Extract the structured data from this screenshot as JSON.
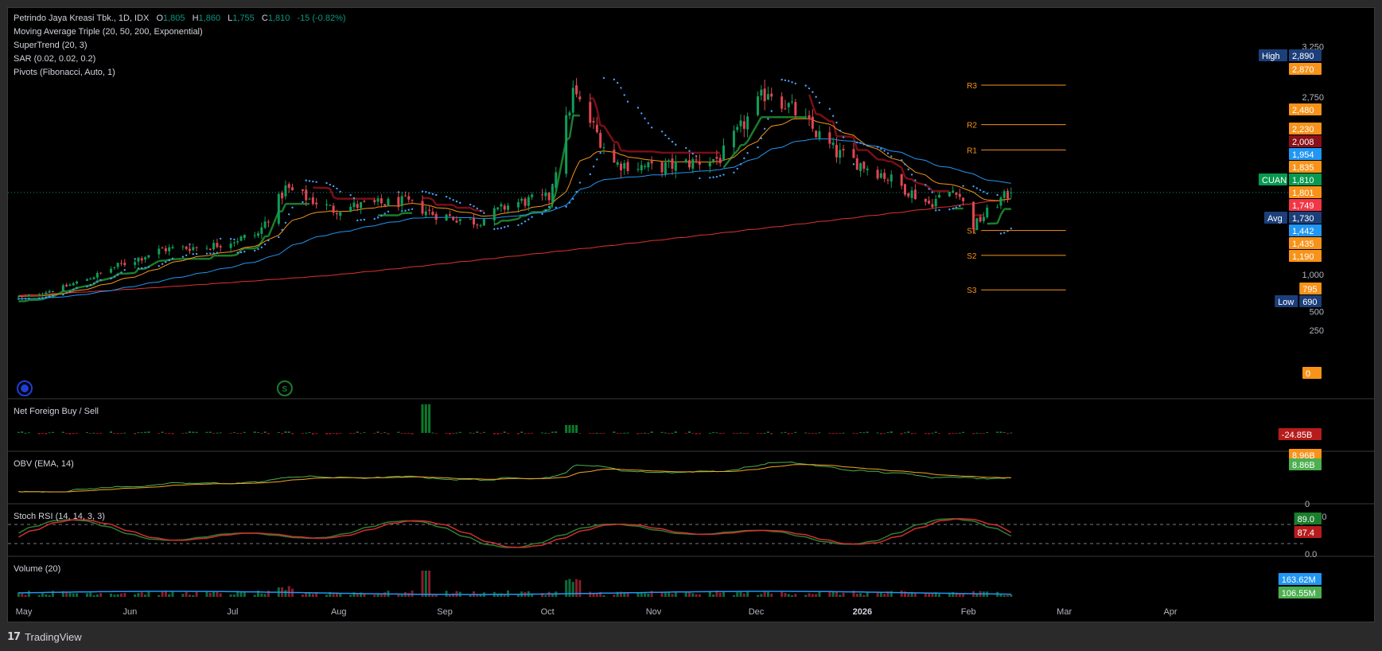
{
  "legend": {
    "symbol": "Petrindo Jaya Kreasi Tbk., 1D, IDX",
    "ohlc": [
      {
        "key": "O",
        "value": "1,805"
      },
      {
        "key": "H",
        "value": "1,860"
      },
      {
        "key": "L",
        "value": "1,755"
      },
      {
        "key": "C",
        "value": "1,810"
      }
    ],
    "change": "-15 (-0.82%)",
    "indicators": [
      "Moving Average Triple (20, 50, 200, Exponential)",
      "SuperTrend (20, 3)",
      "SAR (0.02, 0.02, 0.2)",
      "Pivots (Fibonacci, Auto, 1)"
    ]
  },
  "colors": {
    "up": "#089981",
    "up_fill": "#0b7a3a",
    "down": "#f23645",
    "down_fill": "#e04650",
    "ema20": "#f7931a",
    "ema50": "#2196f3",
    "ema200": "#e03131",
    "supertrend_up": "#1b7d2b",
    "supertrend_down": "#7a0f16",
    "sar": "#4a9fff",
    "pivot": "#f7931a",
    "obv": "#4caf50",
    "obv_ema": "#f5a623",
    "stoch_k": "#2e7d32",
    "stoch_d": "#d32f2f",
    "volume_ma": "#2196f3"
  },
  "price_axis": {
    "ticks": [
      "3,250",
      "2,750",
      "1,000",
      "500",
      "250"
    ]
  },
  "pivots": [
    {
      "label": "R3",
      "value": 2870
    },
    {
      "label": "R2",
      "value": 2480
    },
    {
      "label": "R1",
      "value": 2230
    },
    {
      "label": "S1",
      "value": 1435
    },
    {
      "label": "S2",
      "value": 1190
    },
    {
      "label": "S3",
      "value": 795
    }
  ],
  "price_badges": [
    {
      "prefix": "High",
      "value": "2,890",
      "price": 2890,
      "color": "#1c3f7a"
    },
    {
      "prefix": "",
      "value": "2,870",
      "price": 2870,
      "color": "#f7931a"
    },
    {
      "prefix": "",
      "value": "2,480",
      "price": 2480,
      "color": "#f7931a"
    },
    {
      "prefix": "",
      "value": "2,230",
      "price": 2230,
      "color": "#f7931a"
    },
    {
      "prefix": "",
      "value": "2,008",
      "price": 2008,
      "color": "#8b1019"
    },
    {
      "prefix": "",
      "value": "1,954",
      "price": 1954,
      "color": "#2196f3"
    },
    {
      "prefix": "",
      "value": "1,835",
      "price": 1835,
      "color": "#f7931a"
    },
    {
      "prefix": "CUAN",
      "value": "1,810",
      "price": 1810,
      "color": "#089950"
    },
    {
      "prefix": "",
      "value": "1,801",
      "price": 1801,
      "color": "#f7931a"
    },
    {
      "prefix": "",
      "value": "1,749",
      "price": 1749,
      "color": "#f23645"
    },
    {
      "prefix": "Avg",
      "value": "1,730",
      "price": 1730,
      "color": "#1c3f7a"
    },
    {
      "prefix": "",
      "value": "1,442",
      "price": 1442,
      "color": "#2196f3"
    },
    {
      "prefix": "",
      "value": "1,435",
      "price": 1435,
      "color": "#f7931a"
    },
    {
      "prefix": "",
      "value": "1,190",
      "price": 1190,
      "color": "#f7931a"
    },
    {
      "prefix": "",
      "value": "795",
      "price": 795,
      "color": "#f7931a"
    },
    {
      "prefix": "Low",
      "value": "690",
      "price": 690,
      "color": "#1c3f7a"
    },
    {
      "prefix": "",
      "value": "0",
      "price": 0,
      "color": "#f7931a"
    }
  ],
  "panes": {
    "foreign": {
      "title": "Net Foreign Buy / Sell",
      "badge": "-24.85B",
      "badge_color": "#b71c1c"
    },
    "obv": {
      "title": "OBV (EMA, 14)",
      "badge_top": "8.96B",
      "badge": "8.86B",
      "badge_color": "#4caf50",
      "zero_tick": "0"
    },
    "stoch": {
      "title": "Stoch RSI (14, 14, 3, 3)",
      "badge_k": "89.0",
      "badge_d": "87.4",
      "top_tick": "100.0",
      "bottom_tick": "0.0"
    },
    "volume": {
      "title": "Volume (20)",
      "badge_ma": "163.62M",
      "badge_vol": "106.55M"
    }
  },
  "time_axis": [
    {
      "label": "May",
      "bold": false
    },
    {
      "label": "Jun",
      "bold": false
    },
    {
      "label": "Jul",
      "bold": false
    },
    {
      "label": "Aug",
      "bold": false
    },
    {
      "label": "Sep",
      "bold": false
    },
    {
      "label": "Oct",
      "bold": false
    },
    {
      "label": "Nov",
      "bold": false
    },
    {
      "label": "Dec",
      "bold": false
    },
    {
      "label": "2026",
      "bold": true
    },
    {
      "label": "Feb",
      "bold": false
    },
    {
      "label": "Mar",
      "bold": false
    },
    {
      "label": "Apr",
      "bold": false
    }
  ],
  "markers": [
    {
      "icon": "dividend-marker-icon",
      "letter": "",
      "color": "#1e3fd6",
      "date": "2025-05-01"
    },
    {
      "icon": "split-marker-icon",
      "letter": "S",
      "color": "#1b7d2b",
      "date": "2025-07-16"
    }
  ],
  "footer": {
    "brand": "TradingView",
    "logo": "17"
  },
  "chart_data": {
    "type": "candlestick",
    "title": "Petrindo Jaya Kreasi Tbk., 1D, IDX",
    "ylim": [
      0,
      3250
    ],
    "grid": false,
    "anchors": [
      [
        "2025-05-01",
        700
      ],
      [
        "2025-05-12",
        830
      ],
      [
        "2025-05-26",
        1060
      ],
      [
        "2025-06-10",
        1250
      ],
      [
        "2025-06-24",
        1280
      ],
      [
        "2025-07-08",
        1400
      ],
      [
        "2025-07-16",
        1850
      ],
      [
        "2025-07-30",
        1640
      ],
      [
        "2025-08-06",
        1680
      ],
      [
        "2025-08-20",
        1720
      ],
      [
        "2025-08-28",
        1600
      ],
      [
        "2025-09-10",
        1520
      ],
      [
        "2025-09-20",
        1700
      ],
      [
        "2025-10-01",
        1760
      ],
      [
        "2025-10-08",
        2800
      ],
      [
        "2025-10-20",
        2100
      ],
      [
        "2025-11-01",
        2050
      ],
      [
        "2025-11-20",
        2150
      ],
      [
        "2025-12-04",
        2830
      ],
      [
        "2025-12-12",
        2600
      ],
      [
        "2025-12-24",
        2200
      ],
      [
        "2026-01-06",
        2000
      ],
      [
        "2026-01-20",
        1700
      ],
      [
        "2026-01-28",
        1850
      ],
      [
        "2026-02-02",
        1480
      ],
      [
        "2026-02-10",
        1740
      ],
      [
        "2026-02-13",
        1810
      ]
    ],
    "last": {
      "open": 1805,
      "high": 1860,
      "low": 1755,
      "close": 1810,
      "change": -15,
      "change_pct": -0.82
    },
    "high": 2890,
    "low": 690,
    "avg": 1730,
    "ema20": 1801,
    "ema50": 1954,
    "ema200": 1749,
    "supertrend": 2008,
    "sar": 1442,
    "net_foreign_last": "-24.85B",
    "obv_last": "8.86B",
    "obv_ema_last": "8.96B",
    "stoch_k_last": 89.0,
    "stoch_d_last": 87.4,
    "volume_last": "106.55M",
    "volume_ma_last": "163.62M"
  }
}
